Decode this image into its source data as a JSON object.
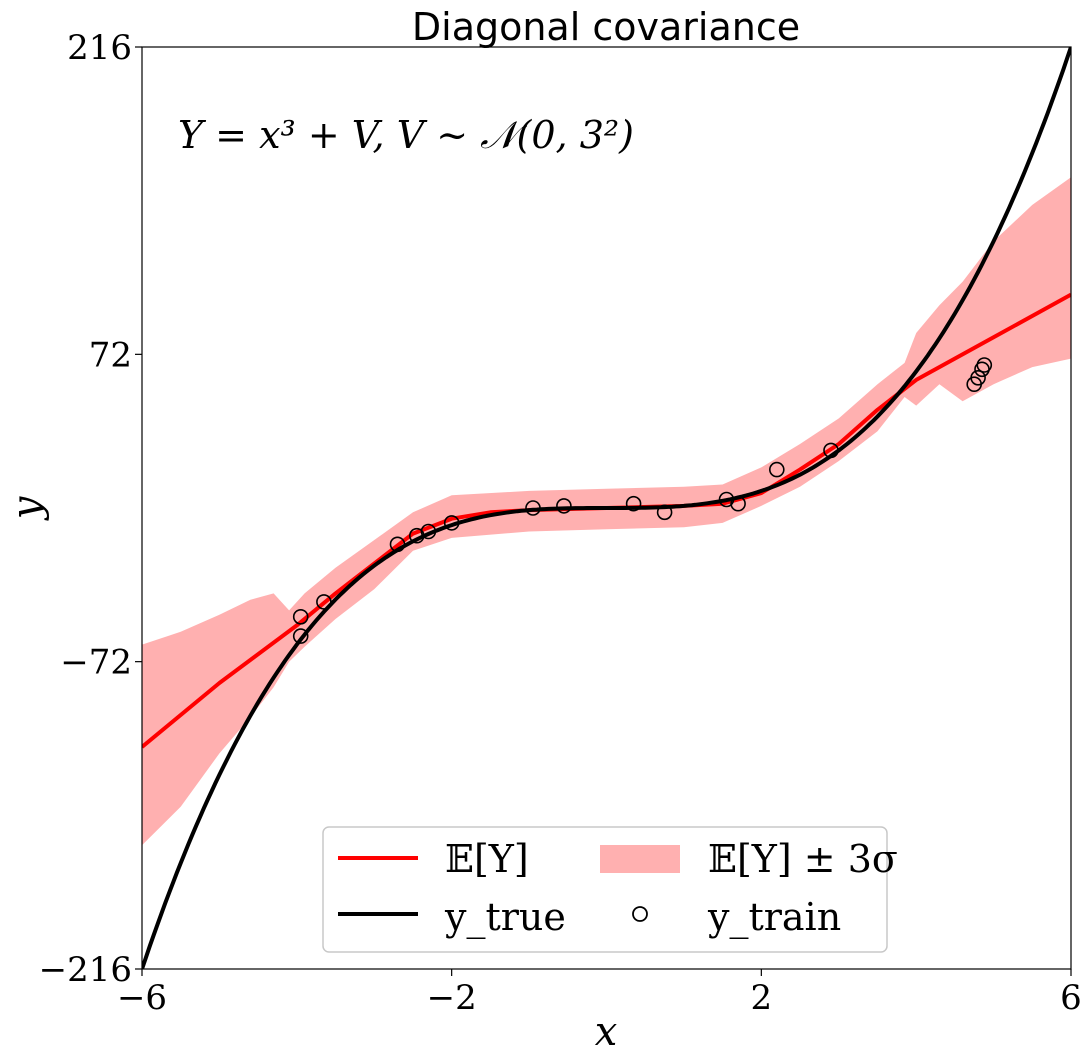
{
  "chart_data": {
    "type": "line",
    "title": "Diagonal covariance",
    "xlabel": "x",
    "ylabel": "y",
    "xlim": [
      -6,
      6
    ],
    "ylim": [
      -216,
      216
    ],
    "xticks": [
      -6,
      -2,
      2,
      6
    ],
    "xtick_labels": [
      "−6",
      "−2",
      "2",
      "6"
    ],
    "yticks": [
      -216,
      -72,
      72,
      216
    ],
    "ytick_labels": [
      "−216",
      "−72",
      "72",
      "216"
    ],
    "annotation": "Y = x³ + V,  V ~ 𝒩(0, 3²)",
    "grid": false,
    "legend_position": "lower center",
    "legend_columns": 2,
    "legend": [
      {
        "label": "𝔼[Y]",
        "kind": "line",
        "color": "#ff0000"
      },
      {
        "label": "𝔼[Y] ± 3σ",
        "kind": "band",
        "color": "#ffb0b0"
      },
      {
        "label": "y_true",
        "kind": "line",
        "color": "#000000"
      },
      {
        "label": "y_train",
        "kind": "marker",
        "color": "#000000"
      }
    ],
    "series": [
      {
        "name": "𝔼[Y]",
        "type": "line",
        "color": "#ff0000",
        "x": [
          -6,
          -5,
          -4,
          -3.5,
          -3,
          -2.5,
          -2,
          -1.5,
          -1,
          0,
          1,
          1.5,
          2,
          2.5,
          3,
          3.5,
          4,
          5,
          6
        ],
        "y": [
          -112,
          -82,
          -55,
          -40,
          -26,
          -12,
          -5,
          -2,
          -1,
          0,
          1,
          2,
          7,
          18,
          30,
          46,
          60,
          80,
          100
        ]
      },
      {
        "name": "𝔼[Y] ± 3σ",
        "type": "band",
        "color": "#ffb0b0",
        "x": [
          -6,
          -5.5,
          -5,
          -4.6,
          -4.3,
          -4.1,
          -3.9,
          -3.5,
          -3,
          -2.5,
          -2,
          -1,
          0,
          1,
          1.5,
          2,
          2.5,
          3,
          3.5,
          3.85,
          4,
          4.3,
          4.6,
          5,
          5.5,
          6
        ],
        "upper": [
          -64,
          -58,
          -50,
          -43,
          -40,
          -48,
          -40,
          -28,
          -15,
          -2,
          6,
          8,
          9,
          10,
          11,
          19,
          30,
          42,
          58,
          68,
          82,
          95,
          106,
          125,
          142,
          155
        ],
        "lower": [
          -158,
          -140,
          -115,
          -98,
          -84,
          -72,
          -65,
          -52,
          -38,
          -20,
          -14,
          -11,
          -10,
          -9,
          -7,
          1,
          10,
          22,
          36,
          52,
          48,
          58,
          50,
          58,
          66,
          70
        ]
      },
      {
        "name": "y_true",
        "type": "line",
        "color": "#000000",
        "function": "x^3",
        "x": [
          -6,
          -5.5,
          -5,
          -4.5,
          -4,
          -3.5,
          -3,
          -2.5,
          -2,
          -1.5,
          -1,
          -0.5,
          0,
          0.5,
          1,
          1.5,
          2,
          2.5,
          3,
          3.5,
          4,
          4.5,
          5,
          5.5,
          6
        ],
        "y": [
          -216,
          -166.375,
          -125,
          -91.125,
          -64,
          -42.875,
          -27,
          -15.625,
          -8,
          -3.375,
          -1,
          -0.125,
          0,
          0.125,
          1,
          3.375,
          8,
          15.625,
          27,
          42.875,
          64,
          91.125,
          125,
          166.375,
          216
        ]
      },
      {
        "name": "y_train",
        "type": "scatter",
        "color": "#000000",
        "x": [
          -3.95,
          -3.95,
          -3.65,
          -2.7,
          -2.45,
          -2.3,
          -2.0,
          -0.95,
          -0.55,
          0.35,
          0.75,
          1.55,
          1.7,
          2.2,
          2.9,
          4.75,
          4.8,
          4.85,
          4.88
        ],
        "y": [
          -60,
          -51,
          -44,
          -17,
          -13,
          -11,
          -7,
          0,
          1,
          2,
          -2,
          4,
          2,
          18,
          27,
          58,
          61,
          65,
          67
        ]
      }
    ]
  }
}
